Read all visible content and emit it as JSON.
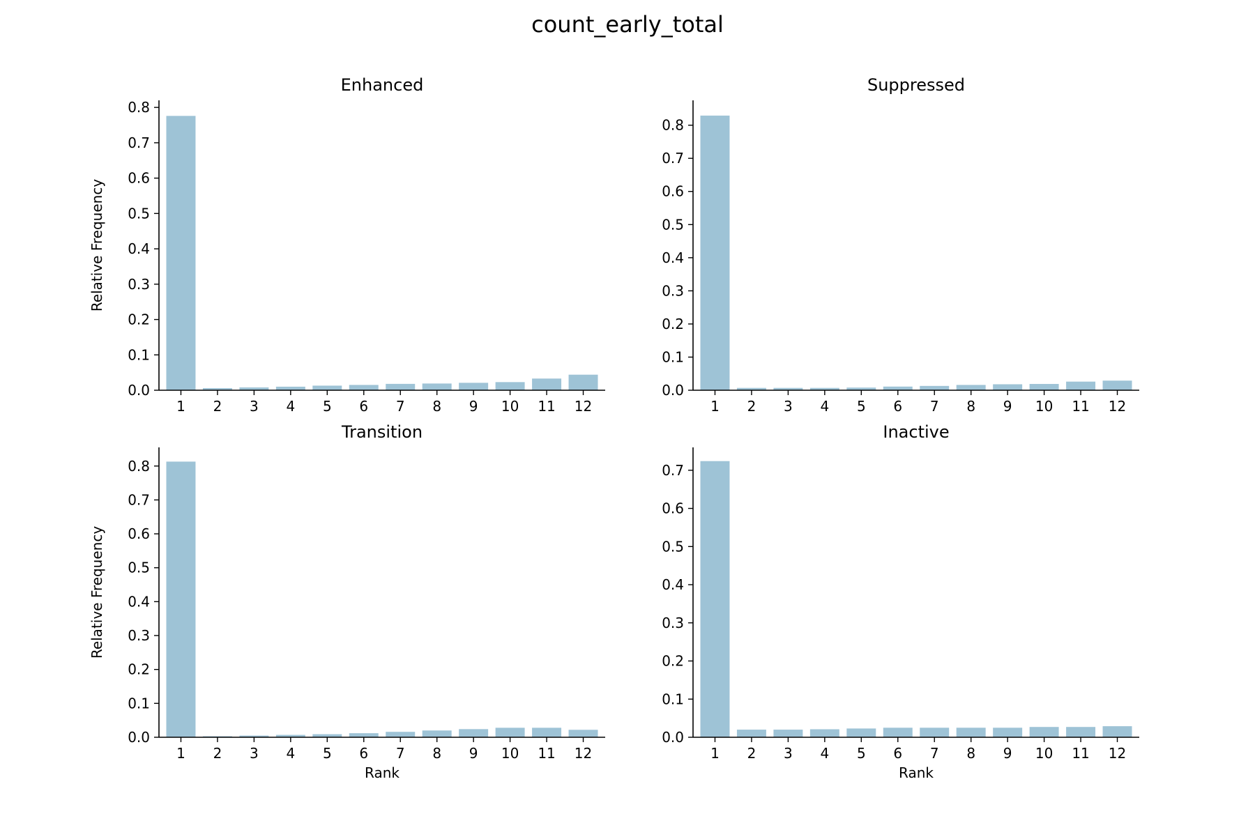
{
  "figure": {
    "title": "count_early_total",
    "bar_color": "#9ec3d6"
  },
  "chart_data": [
    {
      "type": "bar",
      "title": "Enhanced",
      "xlabel": "",
      "ylabel": "Relative Frequency",
      "categories": [
        "1",
        "2",
        "3",
        "4",
        "5",
        "6",
        "7",
        "8",
        "9",
        "10",
        "11",
        "12"
      ],
      "values": [
        0.776,
        0.006,
        0.008,
        0.01,
        0.013,
        0.015,
        0.018,
        0.019,
        0.021,
        0.023,
        0.033,
        0.044
      ],
      "ylim": [
        0,
        0.82
      ],
      "yticks": [
        "0.0",
        "0.1",
        "0.2",
        "0.3",
        "0.4",
        "0.5",
        "0.6",
        "0.7",
        "0.8"
      ],
      "grid": false
    },
    {
      "type": "bar",
      "title": "Suppressed",
      "xlabel": "",
      "ylabel": "",
      "categories": [
        "1",
        "2",
        "3",
        "4",
        "5",
        "6",
        "7",
        "8",
        "9",
        "10",
        "11",
        "12"
      ],
      "values": [
        0.829,
        0.007,
        0.007,
        0.007,
        0.008,
        0.011,
        0.013,
        0.016,
        0.018,
        0.019,
        0.026,
        0.029
      ],
      "ylim": [
        0,
        0.875
      ],
      "yticks": [
        "0.0",
        "0.1",
        "0.2",
        "0.3",
        "0.4",
        "0.5",
        "0.6",
        "0.7",
        "0.8"
      ],
      "grid": false
    },
    {
      "type": "bar",
      "title": "Transition",
      "xlabel": "Rank",
      "ylabel": "Relative Frequency",
      "categories": [
        "1",
        "2",
        "3",
        "4",
        "5",
        "6",
        "7",
        "8",
        "9",
        "10",
        "11",
        "12"
      ],
      "values": [
        0.813,
        0.003,
        0.005,
        0.007,
        0.009,
        0.012,
        0.016,
        0.02,
        0.024,
        0.028,
        0.028,
        0.022
      ],
      "ylim": [
        0,
        0.855
      ],
      "yticks": [
        "0.0",
        "0.1",
        "0.2",
        "0.3",
        "0.4",
        "0.5",
        "0.6",
        "0.7",
        "0.8"
      ],
      "grid": false
    },
    {
      "type": "bar",
      "title": "Inactive",
      "xlabel": "Rank",
      "ylabel": "",
      "categories": [
        "1",
        "2",
        "3",
        "4",
        "5",
        "6",
        "7",
        "8",
        "9",
        "10",
        "11",
        "12"
      ],
      "values": [
        0.724,
        0.02,
        0.02,
        0.021,
        0.023,
        0.025,
        0.025,
        0.025,
        0.025,
        0.027,
        0.027,
        0.029
      ],
      "ylim": [
        0,
        0.76
      ],
      "yticks": [
        "0.0",
        "0.1",
        "0.2",
        "0.3",
        "0.4",
        "0.5",
        "0.6",
        "0.7"
      ],
      "grid": false
    }
  ]
}
